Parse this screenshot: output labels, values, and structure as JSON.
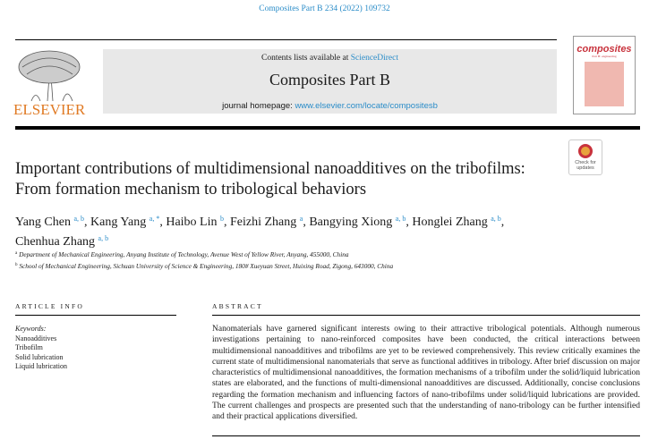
{
  "header": {
    "citation": "Composites Part B 234 (2022) 109732",
    "contents_prefix": "Contents lists available at ",
    "contents_link": "ScienceDirect",
    "journal_title": "Composites Part B",
    "homepage_prefix": "journal homepage: ",
    "homepage_link": "www.elsevier.com/locate/compositesb",
    "publisher": "ELSEVIER",
    "cover_title": "composites",
    "cover_subtitle": "Part B: engineering",
    "badge_line1": "Check for",
    "badge_line2": "updates"
  },
  "article": {
    "title": "Important contributions of multidimensional nanoadditives on the tribofilms: From formation mechanism to tribological behaviors",
    "authors": [
      {
        "name": "Yang Chen",
        "sup": "a, b",
        "sep": ", "
      },
      {
        "name": "Kang Yang",
        "sup": "a, *",
        "sep": ", "
      },
      {
        "name": "Haibo Lin",
        "sup": "b",
        "sep": ", "
      },
      {
        "name": "Feizhi Zhang",
        "sup": "a",
        "sep": ", "
      },
      {
        "name": "Bangying Xiong",
        "sup": "a, b",
        "sep": ", "
      },
      {
        "name": "Honglei Zhang",
        "sup": "a, b",
        "sep": ","
      },
      {
        "name": "Chenhua Zhang",
        "sup": "a, b",
        "sep": ""
      }
    ],
    "affiliations": [
      {
        "mark": "a",
        "text": "Department of Mechanical Engineering, Anyang Institute of Technology, Avenue West of Yellow River, Anyang, 455000, China"
      },
      {
        "mark": "b",
        "text": "School of Mechanical Engineering, Sichuan University of Science & Engineering, 180# Xueyuan Street, Huixing Road, Zigong, 643000, China"
      }
    ]
  },
  "info": {
    "heading": "ARTICLE INFO",
    "keywords_label": "Keywords:",
    "keywords": [
      "Nanoadditives",
      "Tribofilm",
      "Solid lubrication",
      "Liquid lubrication"
    ]
  },
  "abstract": {
    "heading": "ABSTRACT",
    "text": "Nanomaterials have garnered significant interests owing to their attractive tribological potentials. Although numerous investigations pertaining to nano-reinforced composites have been conducted, the critical interactions between multidimensional nanoadditives and tribofilms are yet to be reviewed comprehensively. This review critically examines the current state of multidimensional nanomaterials that serve as functional additives in tribology. After brief discussion on major characteristics of multidimensional nanoadditives, the formation mechanisms of a tribofilm under the solid/liquid lubrication states are elaborated, and the functions of multi-dimensional nanoadditives are discussed. Additionally, concise conclusions regarding the formation mechanism and influencing factors of nano-tribofilms under solid/liquid lubrications are provided. The current challenges and prospects are presented such that the understanding of nano-tribology can be further intensified and their practical applications diversified."
  },
  "colors": {
    "link": "#2a8cc8",
    "publisher": "#e07a24",
    "box": "#e8e8e8"
  }
}
